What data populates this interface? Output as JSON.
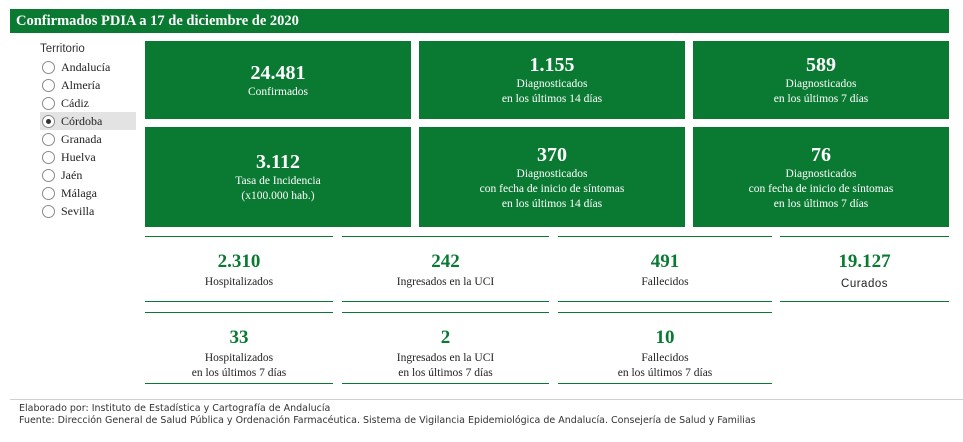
{
  "header": {
    "title": "Confirmados PDIA a 17 de diciembre de 2020"
  },
  "territory": {
    "heading": "Territorio",
    "options": [
      {
        "label": "Andalucía",
        "selected": false
      },
      {
        "label": "Almería",
        "selected": false
      },
      {
        "label": "Cádiz",
        "selected": false
      },
      {
        "label": "Córdoba",
        "selected": true
      },
      {
        "label": "Granada",
        "selected": false
      },
      {
        "label": "Huelva",
        "selected": false
      },
      {
        "label": "Jaén",
        "selected": false
      },
      {
        "label": "Málaga",
        "selected": false
      },
      {
        "label": "Sevilla",
        "selected": false
      }
    ]
  },
  "cards": [
    {
      "value": "24.481",
      "lines": [
        "Confirmados"
      ]
    },
    {
      "value": "1.155",
      "lines": [
        "Diagnosticados",
        "en los últimos 14 días"
      ]
    },
    {
      "value": "589",
      "lines": [
        "Diagnosticados",
        "en los últimos 7 días"
      ]
    },
    {
      "value": "3.112",
      "lines": [
        "Tasa de Incidencia",
        "(x100.000 hab.)"
      ]
    },
    {
      "value": "370",
      "lines": [
        "Diagnosticados",
        "con fecha de inicio de síntomas",
        "en los últimos 14 días"
      ]
    },
    {
      "value": "76",
      "lines": [
        "Diagnosticados",
        "con fecha de inicio de síntomas",
        "en los últimos 7 días"
      ]
    }
  ],
  "stats": [
    {
      "value": "2.310",
      "lines": [
        "Hospitalizados"
      ]
    },
    {
      "value": "242",
      "lines": [
        "Ingresados en la UCI"
      ]
    },
    {
      "value": "491",
      "lines": [
        "Fallecidos"
      ]
    },
    {
      "value": "19.127",
      "lines": [
        "Curados"
      ]
    },
    {
      "value": "33",
      "lines": [
        "Hospitalizados",
        "en los últimos 7 días"
      ]
    },
    {
      "value": "2",
      "lines": [
        "Ingresados en la UCI",
        "en los últimos 7 días"
      ]
    },
    {
      "value": "10",
      "lines": [
        "Fallecidos",
        "en los últimos 7 días"
      ]
    }
  ],
  "footer": {
    "elaborado": "Elaborado por: Instituto de Estadística y Cartografía de Andalucía",
    "fuente": "Fuente: Dirección General de Salud Pública y Ordenación Farmacéutica. Sistema de Vigilancia Epidemiológica de Andalucía. Consejería de Salud y Familias"
  },
  "colors": {
    "brand_green": "#0a7a32",
    "selected_bg": "#e3e3e3"
  }
}
